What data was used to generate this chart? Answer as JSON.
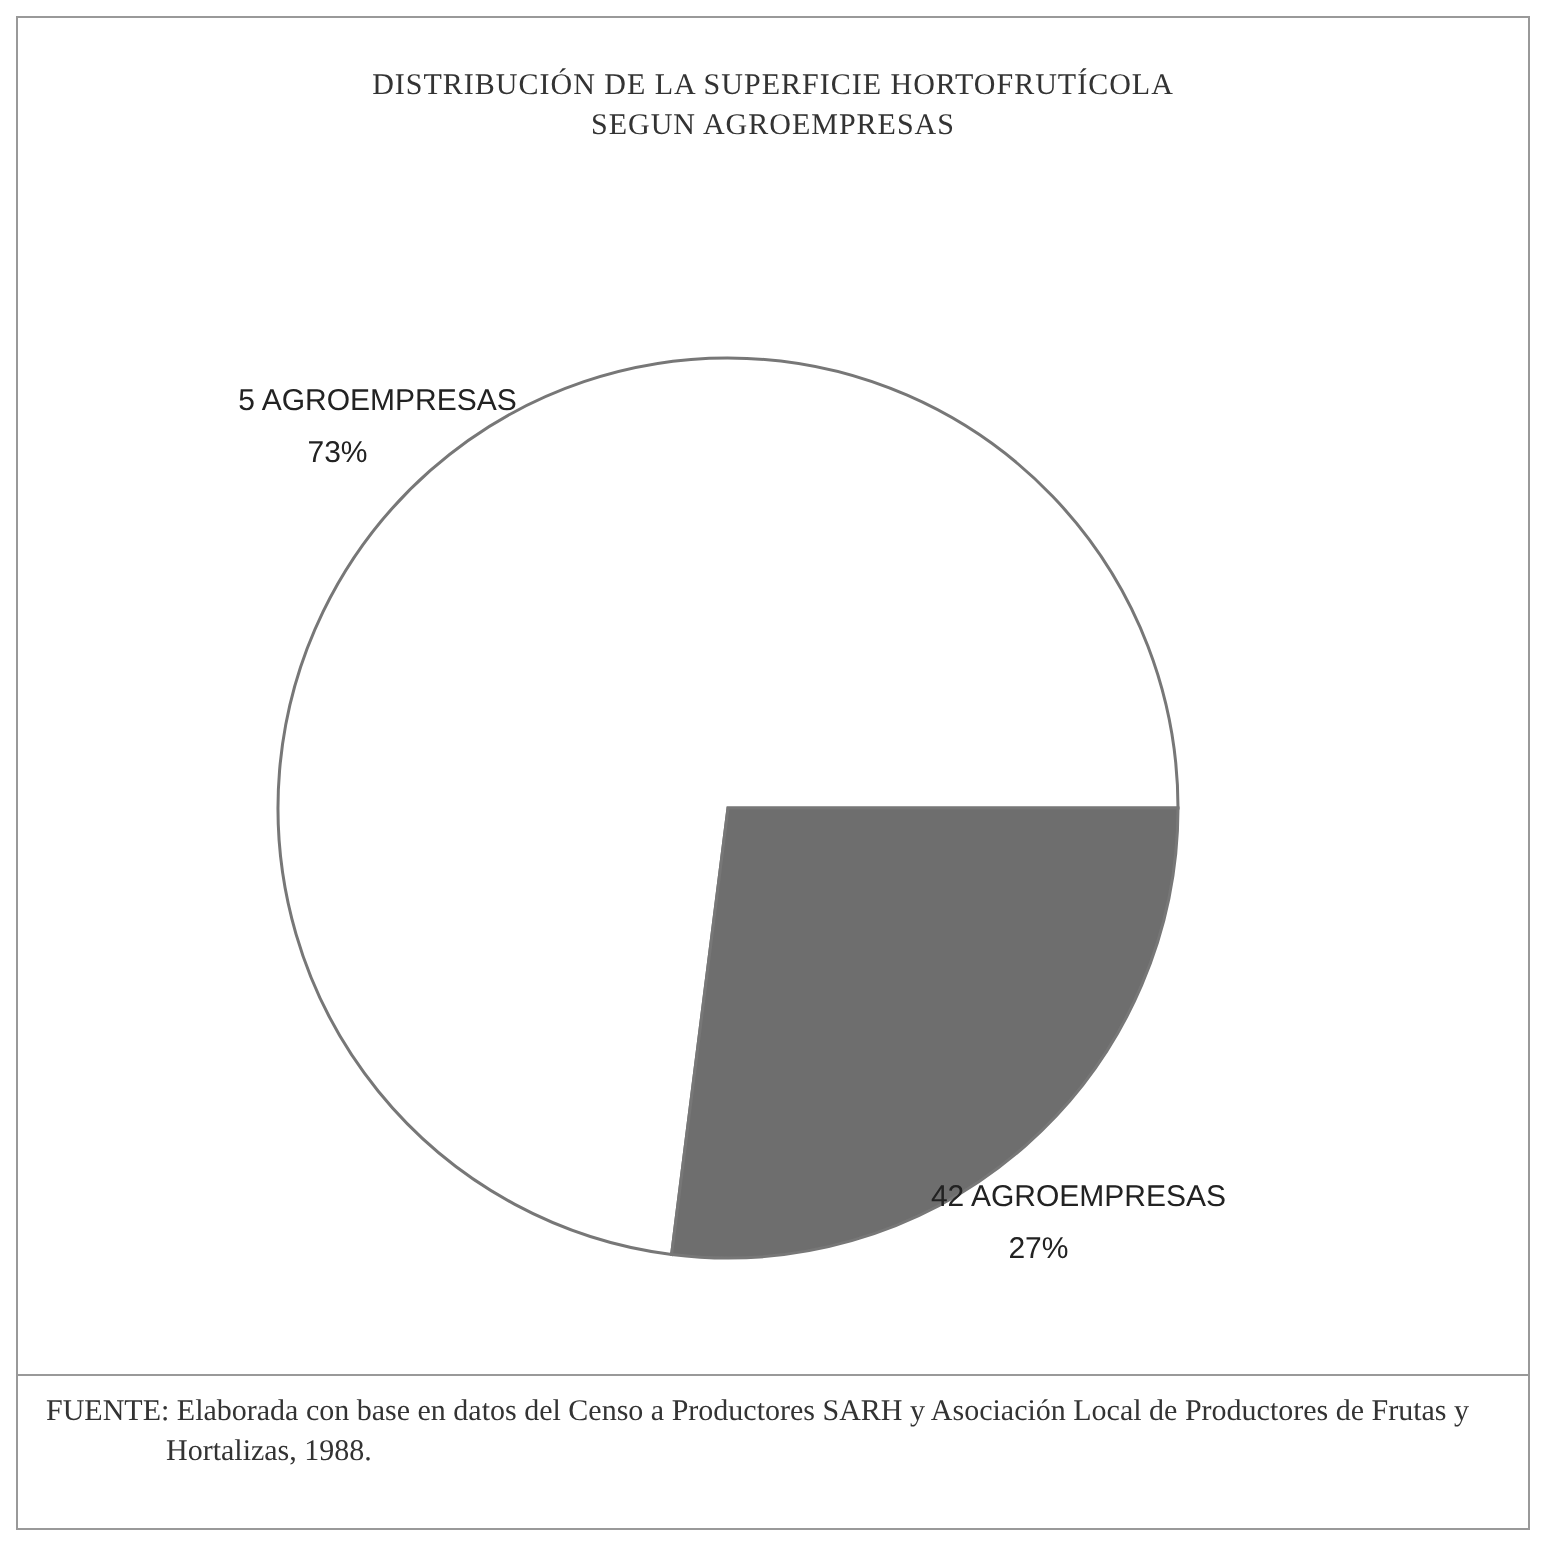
{
  "chart_data": {
    "type": "pie",
    "title": "DISTRIBUCIÓN DE LA SUPERFICIE HORTOFRUTÍCOLA\nSEGUN AGROEMPRESAS",
    "categories": [
      "5 AGROEMPRESAS",
      "42 AGROEMPRESAS"
    ],
    "values": [
      73,
      27
    ],
    "value_labels": [
      "73%",
      "27%"
    ],
    "colors": [
      "#ffffff",
      "#6e6e6e"
    ],
    "annotations": [
      "FUENTE: Elaborada con base en datos del Censo a Productores SARH y Asociación Local de Productores de Frutas y Hortalizas, 1988."
    ],
    "legend": false
  }
}
